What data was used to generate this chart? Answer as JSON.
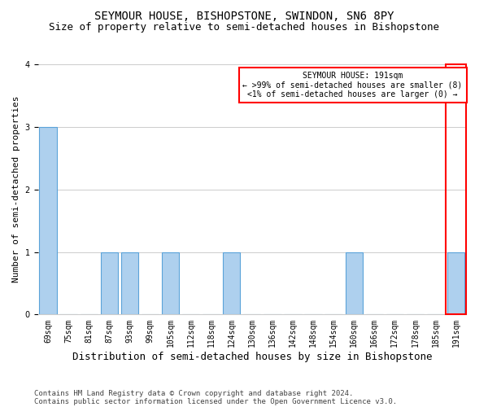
{
  "title": "SEYMOUR HOUSE, BISHOPSTONE, SWINDON, SN6 8PY",
  "subtitle": "Size of property relative to semi-detached houses in Bishopstone",
  "xlabel": "Distribution of semi-detached houses by size in Bishopstone",
  "ylabel": "Number of semi-detached properties",
  "categories": [
    "69sqm",
    "75sqm",
    "81sqm",
    "87sqm",
    "93sqm",
    "99sqm",
    "105sqm",
    "112sqm",
    "118sqm",
    "124sqm",
    "130sqm",
    "136sqm",
    "142sqm",
    "148sqm",
    "154sqm",
    "160sqm",
    "166sqm",
    "172sqm",
    "178sqm",
    "185sqm",
    "191sqm"
  ],
  "values": [
    3,
    0,
    0,
    1,
    1,
    0,
    1,
    0,
    0,
    1,
    0,
    0,
    0,
    0,
    0,
    1,
    0,
    0,
    0,
    0,
    1
  ],
  "bar_color": "#aed0ee",
  "bar_edge_color": "#5ba3d9",
  "highlight_index": 20,
  "annotation_title": "SEYMOUR HOUSE: 191sqm",
  "annotation_line1": "← >99% of semi-detached houses are smaller (8)",
  "annotation_line2": "<1% of semi-detached houses are larger (0) →",
  "ylim": [
    0,
    4
  ],
  "yticks": [
    0,
    1,
    2,
    3,
    4
  ],
  "footer_line1": "Contains HM Land Registry data © Crown copyright and database right 2024.",
  "footer_line2": "Contains public sector information licensed under the Open Government Licence v3.0.",
  "title_fontsize": 10,
  "subtitle_fontsize": 9,
  "xlabel_fontsize": 9,
  "ylabel_fontsize": 8,
  "tick_fontsize": 7,
  "annotation_fontsize": 7,
  "footer_fontsize": 6.5
}
